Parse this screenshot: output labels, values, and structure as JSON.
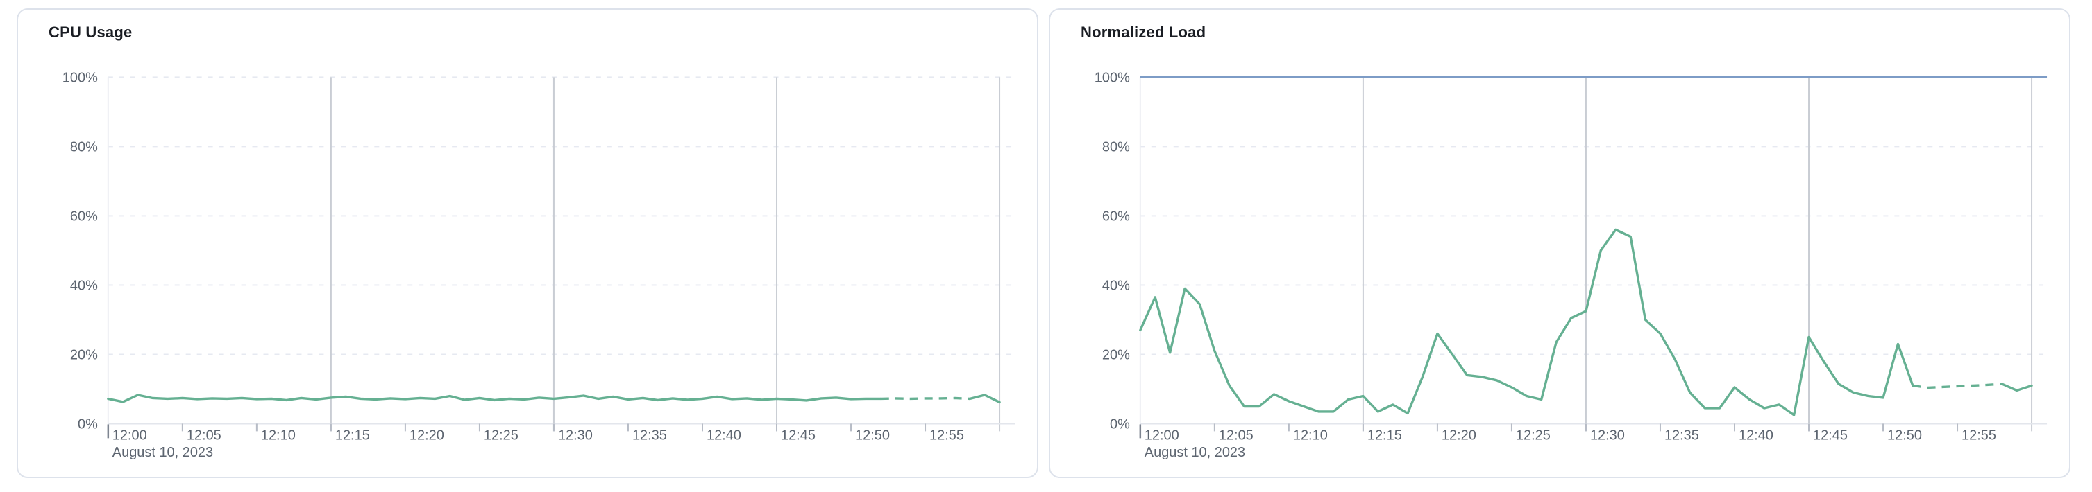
{
  "page": {
    "background": "#ffffff"
  },
  "chart_data": [
    {
      "type": "line",
      "title": "CPU Usage",
      "date_label": "August 10, 2023",
      "x_start": "12:00",
      "x_end": "13:00",
      "x_interval_minutes": 1,
      "x_tick_labels": [
        "12:00",
        "12:05",
        "12:10",
        "12:15",
        "12:20",
        "12:25",
        "12:30",
        "12:35",
        "12:40",
        "12:45",
        "12:50",
        "12:55"
      ],
      "y_tick_labels": [
        "0%",
        "20%",
        "40%",
        "60%",
        "80%",
        "100%"
      ],
      "ylim": [
        0,
        100
      ],
      "grid": {
        "h_dashed_color": "#e6e9f1",
        "v_solid_color": "#c9cdd4",
        "v_solid_minutes": [
          15,
          30,
          45,
          60
        ],
        "axis_color": "#e3e6ec",
        "tick_color": "#b7bcc6",
        "first_tick_color": "#7e8591"
      },
      "label_color": "#5d6570",
      "series": [
        {
          "name": "cpu-usage-percent",
          "color": "#65b092",
          "dashed_segment": [
            52,
            58
          ],
          "values": [
            7.2,
            6.3,
            8.3,
            7.4,
            7.2,
            7.4,
            7.1,
            7.3,
            7.2,
            7.4,
            7.1,
            7.2,
            6.8,
            7.4,
            7.0,
            7.5,
            7.8,
            7.2,
            7.0,
            7.3,
            7.1,
            7.4,
            7.2,
            8.0,
            6.9,
            7.4,
            6.8,
            7.2,
            7.0,
            7.5,
            7.2,
            7.6,
            8.1,
            7.2,
            7.8,
            7.0,
            7.4,
            6.8,
            7.3,
            6.9,
            7.2,
            7.8,
            7.1,
            7.3,
            6.9,
            7.2,
            7.0,
            6.7,
            7.3,
            7.5,
            7.1,
            7.2,
            7.2,
            7.3,
            7.2,
            7.3,
            7.3,
            7.4,
            7.2,
            8.3,
            6.2
          ]
        }
      ]
    },
    {
      "type": "line",
      "title": "Normalized Load",
      "date_label": "August 10, 2023",
      "x_start": "12:00",
      "x_end": "13:00",
      "x_interval_minutes": 1,
      "x_tick_labels": [
        "12:00",
        "12:05",
        "12:10",
        "12:15",
        "12:20",
        "12:25",
        "12:30",
        "12:35",
        "12:40",
        "12:45",
        "12:50",
        "12:55"
      ],
      "y_tick_labels": [
        "0%",
        "20%",
        "40%",
        "60%",
        "80%",
        "100%"
      ],
      "ylim": [
        0,
        100
      ],
      "limit_line": {
        "value": 100,
        "color": "#7d9cc6"
      },
      "grid": {
        "h_dashed_color": "#e6e9f1",
        "v_solid_color": "#c9cdd4",
        "v_solid_minutes": [
          15,
          30,
          45,
          60
        ],
        "axis_color": "#e3e6ec",
        "tick_color": "#b7bcc6",
        "first_tick_color": "#7e8591"
      },
      "label_color": "#5d6570",
      "series": [
        {
          "name": "normalized-load-percent",
          "color": "#65b092",
          "dashed_segment": [
            52,
            58
          ],
          "values": [
            27,
            36.5,
            20.5,
            39,
            34.5,
            21,
            11,
            5,
            5,
            8.5,
            6.5,
            5,
            3.5,
            3.5,
            7,
            8,
            3.5,
            5.5,
            3,
            13.5,
            26,
            20,
            14,
            13.5,
            12.5,
            10.5,
            8,
            7,
            23.5,
            30.5,
            32.5,
            50,
            56,
            54,
            30,
            26,
            18.5,
            9,
            4.5,
            4.5,
            10.5,
            7,
            4.5,
            5.5,
            2.5,
            25,
            18,
            11.5,
            9,
            8,
            7.5,
            23,
            11,
            10.4,
            10.6,
            10.8,
            11,
            11.2,
            11.5,
            9.6,
            11
          ]
        }
      ]
    }
  ]
}
